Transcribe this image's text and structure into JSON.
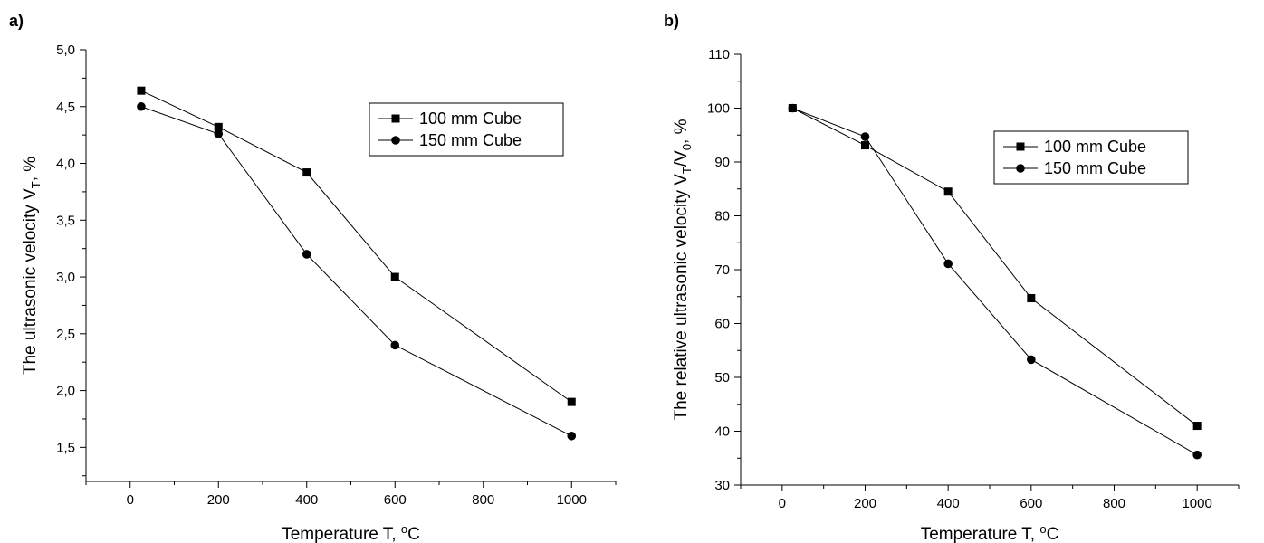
{
  "chart_data": [
    {
      "panel": "a)",
      "type": "line",
      "title": "",
      "xlabel": "Temperature T, °C",
      "ylabel": "The ultrasonic velocity V_T, %",
      "xlim": [
        -100,
        1100
      ],
      "ylim": [
        1.2,
        5.0
      ],
      "xticks": [
        0,
        200,
        400,
        600,
        800,
        1000
      ],
      "xtick_labels": [
        "0",
        "200",
        "400",
        "600",
        "800",
        "1000"
      ],
      "yticks": [
        1.5,
        2.0,
        2.5,
        3.0,
        3.5,
        4.0,
        4.5,
        5.0
      ],
      "ytick_labels": [
        "1,5",
        "2,0",
        "2,5",
        "3,0",
        "3,5",
        "4,0",
        "4,5",
        "5,0"
      ],
      "legend_position": "top-right",
      "grid": false,
      "series": [
        {
          "name": "100 mm Cube",
          "marker": "square",
          "x": [
            25,
            200,
            400,
            600,
            1000
          ],
          "y": [
            4.64,
            4.32,
            3.92,
            3.0,
            1.9
          ]
        },
        {
          "name": "150 mm Cube",
          "marker": "circle",
          "x": [
            25,
            200,
            400,
            600,
            1000
          ],
          "y": [
            4.5,
            4.26,
            3.2,
            2.4,
            1.6
          ]
        }
      ]
    },
    {
      "panel": "b)",
      "type": "line",
      "title": "",
      "xlabel": "Temperature T, °C",
      "ylabel": "The relative ultrasonic velocity V_T/V_0, %",
      "xlim": [
        -100,
        1100
      ],
      "ylim": [
        30,
        110
      ],
      "xticks": [
        0,
        200,
        400,
        600,
        800,
        1000
      ],
      "xtick_labels": [
        "0",
        "200",
        "400",
        "600",
        "800",
        "1000"
      ],
      "yticks": [
        30,
        40,
        50,
        60,
        70,
        80,
        90,
        100,
        110
      ],
      "ytick_labels": [
        "30",
        "40",
        "50",
        "60",
        "70",
        "80",
        "90",
        "100",
        "110"
      ],
      "legend_position": "top-right",
      "grid": false,
      "series": [
        {
          "name": "100 mm Cube",
          "marker": "square",
          "x": [
            25,
            200,
            400,
            600,
            1000
          ],
          "y": [
            100,
            93.1,
            84.5,
            64.7,
            41.0
          ]
        },
        {
          "name": "150 mm Cube",
          "marker": "circle",
          "x": [
            25,
            200,
            400,
            600,
            1000
          ],
          "y": [
            100,
            94.7,
            71.1,
            53.3,
            35.6
          ]
        }
      ]
    }
  ]
}
